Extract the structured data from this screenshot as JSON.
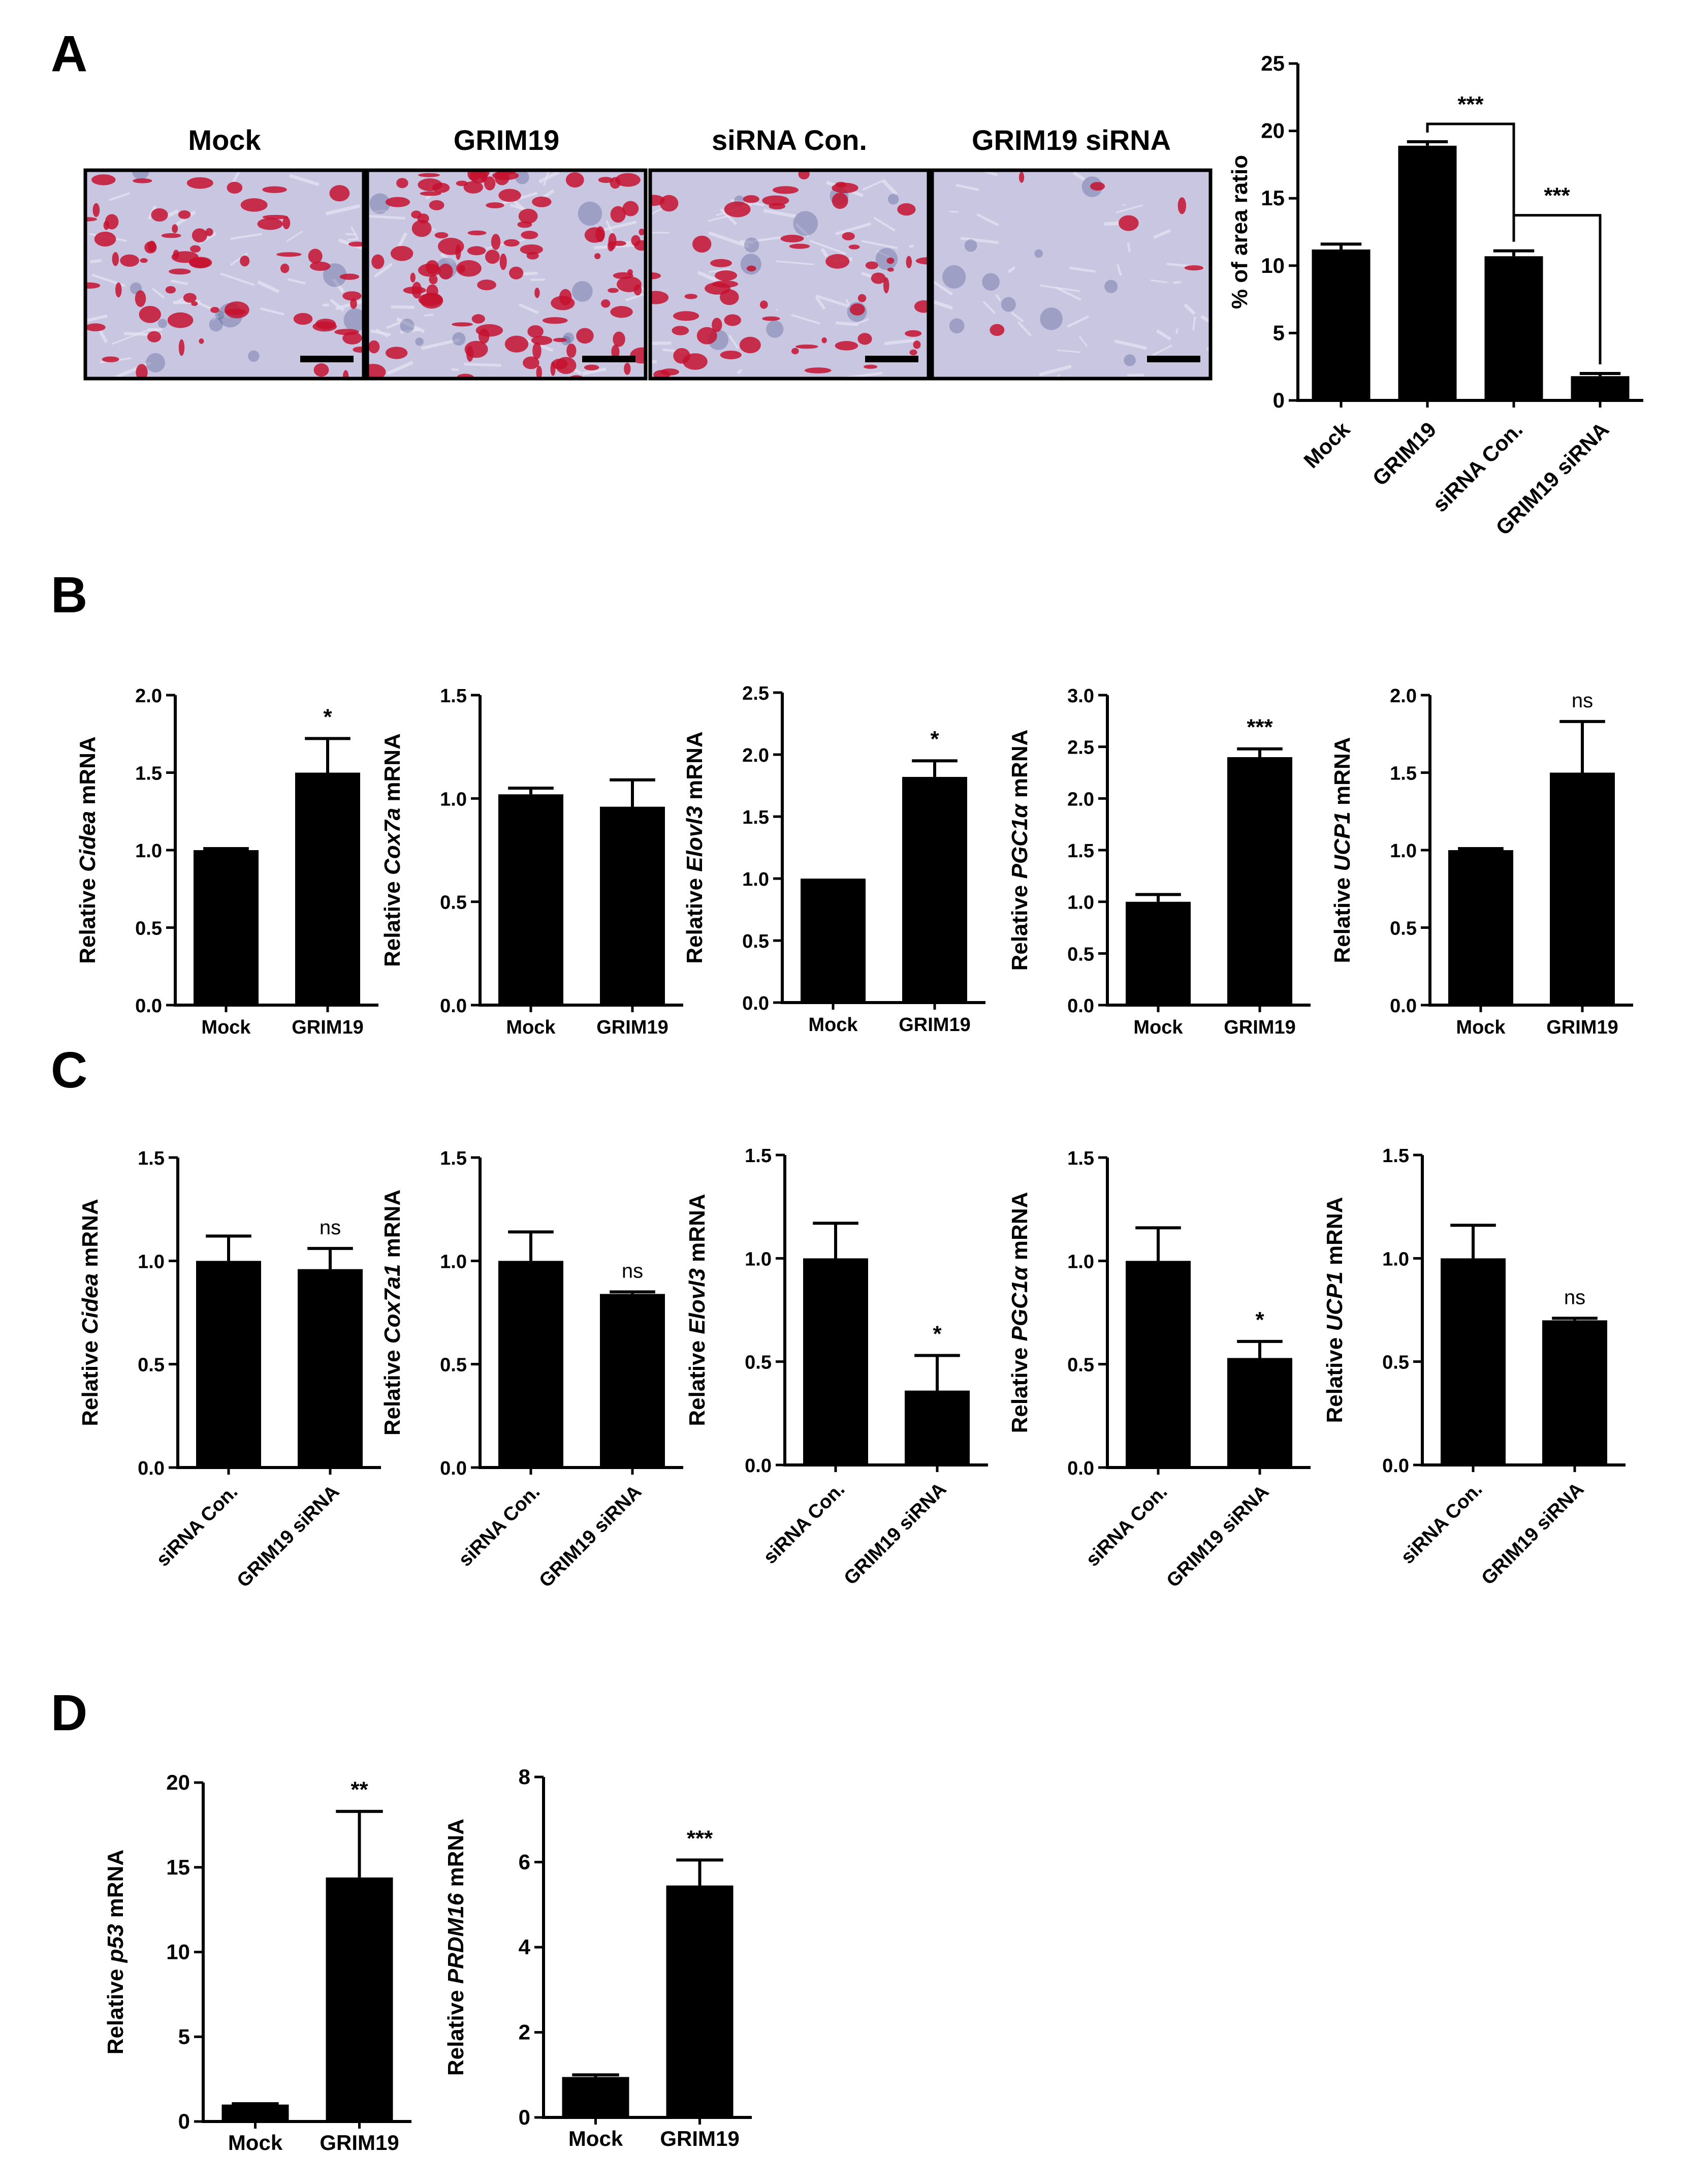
{
  "panels": {
    "A": "A",
    "B": "B",
    "C": "C",
    "D": "D"
  },
  "micrographs": [
    {
      "label": "Mock",
      "stain_density": 0.55
    },
    {
      "label": "GRIM19",
      "stain_density": 0.9
    },
    {
      "label": "siRNA Con.",
      "stain_density": 0.5
    },
    {
      "label": "GRIM19 siRNA",
      "stain_density": 0.05
    }
  ],
  "colors": {
    "bar": "#000000",
    "stain": "#c4122f",
    "background": "#c9c6e2",
    "nuclei": "#4a5a8c"
  },
  "chart_data": [
    {
      "id": "A",
      "type": "bar",
      "categories": [
        "Mock",
        "GRIM19",
        "siRNA Con.",
        "GRIM19 siRNA"
      ],
      "values": [
        11.2,
        18.9,
        10.7,
        1.8
      ],
      "errors": [
        0.4,
        0.3,
        0.4,
        0.2
      ],
      "ylabel": "% of area ratio",
      "ylim": [
        0,
        25
      ],
      "yticks": [
        "0",
        "5",
        "10",
        "15",
        "20",
        "25"
      ],
      "significance": [
        {
          "text": "***",
          "from": 1,
          "to": 2
        },
        {
          "text": "***",
          "from": 2,
          "to": 3
        }
      ]
    },
    {
      "id": "B1",
      "type": "bar",
      "categories": [
        "Mock",
        "GRIM19"
      ],
      "values": [
        1.0,
        1.5
      ],
      "errors": [
        0.01,
        0.22
      ],
      "ylabel_pre": "Relative",
      "ylabel_gene": "Cidea",
      "ylabel_post": "mRNA",
      "ylim": [
        0,
        2.0
      ],
      "yticks": [
        "0.0",
        "0.5",
        "1.0",
        "1.5",
        "2.0"
      ],
      "sig": "*"
    },
    {
      "id": "B2",
      "type": "bar",
      "categories": [
        "Mock",
        "GRIM19"
      ],
      "values": [
        1.02,
        0.96
      ],
      "errors": [
        0.03,
        0.13
      ],
      "ylabel_pre": "Relative",
      "ylabel_gene": "Cox7a",
      "ylabel_post": "mRNA",
      "ylim": [
        0,
        1.5
      ],
      "yticks": [
        "0.0",
        "0.5",
        "1.0",
        "1.5"
      ],
      "sig": ""
    },
    {
      "id": "B3",
      "type": "bar",
      "categories": [
        "Mock",
        "GRIM19"
      ],
      "values": [
        1.0,
        1.82
      ],
      "errors": [
        0.0,
        0.13
      ],
      "ylabel_pre": "Relative",
      "ylabel_gene": "Elovl3",
      "ylabel_post": "mRNA",
      "ylim": [
        0,
        2.5
      ],
      "yticks": [
        "0.0",
        "0.5",
        "1.0",
        "1.5",
        "2.0",
        "2.5"
      ],
      "sig": "*"
    },
    {
      "id": "B4",
      "type": "bar",
      "categories": [
        "Mock",
        "GRIM19"
      ],
      "values": [
        1.0,
        2.4
      ],
      "errors": [
        0.07,
        0.08
      ],
      "ylabel_pre": "Relative",
      "ylabel_gene": "PGC1α",
      "ylabel_post": "mRNA",
      "ylim": [
        0,
        3.0
      ],
      "yticks": [
        "0.0",
        "0.5",
        "1.0",
        "1.5",
        "2.0",
        "2.5",
        "3.0"
      ],
      "sig": "***"
    },
    {
      "id": "B5",
      "type": "bar",
      "categories": [
        "Mock",
        "GRIM19"
      ],
      "values": [
        1.0,
        1.5
      ],
      "errors": [
        0.01,
        0.33
      ],
      "ylabel_pre": "Relative",
      "ylabel_gene": "UCP1",
      "ylabel_post": "mRNA",
      "ylim": [
        0,
        2.0
      ],
      "yticks": [
        "0.0",
        "0.5",
        "1.0",
        "1.5",
        "2.0"
      ],
      "sig": "ns"
    },
    {
      "id": "C1",
      "type": "bar",
      "categories": [
        "siRNA Con.",
        "GRIM19 siRNA"
      ],
      "values": [
        1.0,
        0.96
      ],
      "errors": [
        0.12,
        0.1
      ],
      "ylabel_pre": "Relative",
      "ylabel_gene": "Cidea",
      "ylabel_post": "mRNA",
      "ylim": [
        0,
        1.5
      ],
      "yticks": [
        "0.0",
        "0.5",
        "1.0",
        "1.5"
      ],
      "sig": "ns"
    },
    {
      "id": "C2",
      "type": "bar",
      "categories": [
        "siRNA Con.",
        "GRIM19 siRNA"
      ],
      "values": [
        1.0,
        0.84
      ],
      "errors": [
        0.14,
        0.01
      ],
      "ylabel_pre": "Relative",
      "ylabel_gene": "Cox7a1",
      "ylabel_post": "mRNA",
      "ylim": [
        0,
        1.5
      ],
      "yticks": [
        "0.0",
        "0.5",
        "1.0",
        "1.5"
      ],
      "sig": "ns"
    },
    {
      "id": "C3",
      "type": "bar",
      "categories": [
        "siRNA Con.",
        "GRIM19 siRNA"
      ],
      "values": [
        1.0,
        0.36
      ],
      "errors": [
        0.17,
        0.17
      ],
      "ylabel_pre": "Relative",
      "ylabel_gene": "Elovl3",
      "ylabel_post": "mRNA",
      "ylim": [
        0,
        1.5
      ],
      "yticks": [
        "0.0",
        "0.5",
        "1.0",
        "1.5"
      ],
      "sig": "*"
    },
    {
      "id": "C4",
      "type": "bar",
      "categories": [
        "siRNA Con.",
        "GRIM19 siRNA"
      ],
      "values": [
        1.0,
        0.53
      ],
      "errors": [
        0.16,
        0.08
      ],
      "ylabel_pre": "Relative",
      "ylabel_gene": "PGC1α",
      "ylabel_post": "mRNA",
      "ylim": [
        0,
        1.5
      ],
      "yticks": [
        "0.0",
        "0.5",
        "1.0",
        "1.5"
      ],
      "sig": "*"
    },
    {
      "id": "C5",
      "type": "bar",
      "categories": [
        "siRNA Con.",
        "GRIM19 siRNA"
      ],
      "values": [
        1.0,
        0.7
      ],
      "errors": [
        0.16,
        0.01
      ],
      "ylabel_pre": "Relative",
      "ylabel_gene": "UCP1",
      "ylabel_post": "mRNA",
      "ylim": [
        0,
        1.5
      ],
      "yticks": [
        "0.0",
        "0.5",
        "1.0",
        "1.5"
      ],
      "sig": "ns"
    },
    {
      "id": "D1",
      "type": "bar",
      "categories": [
        "Mock",
        "GRIM19"
      ],
      "values": [
        1.0,
        14.4
      ],
      "errors": [
        0.05,
        3.9
      ],
      "ylabel_pre": "Relative",
      "ylabel_gene": "p53",
      "ylabel_post": "mRNA",
      "ylim": [
        0,
        20
      ],
      "yticks": [
        "0",
        "5",
        "10",
        "15",
        "20"
      ],
      "sig": "**"
    },
    {
      "id": "D2",
      "type": "bar",
      "categories": [
        "Mock",
        "GRIM19"
      ],
      "values": [
        0.95,
        5.45
      ],
      "errors": [
        0.05,
        0.6
      ],
      "ylabel_pre": "Relative",
      "ylabel_gene": "PRDM16",
      "ylabel_post": "mRNA",
      "ylim": [
        0,
        8
      ],
      "yticks": [
        "0",
        "2",
        "4",
        "6",
        "8"
      ],
      "sig": "***"
    }
  ]
}
